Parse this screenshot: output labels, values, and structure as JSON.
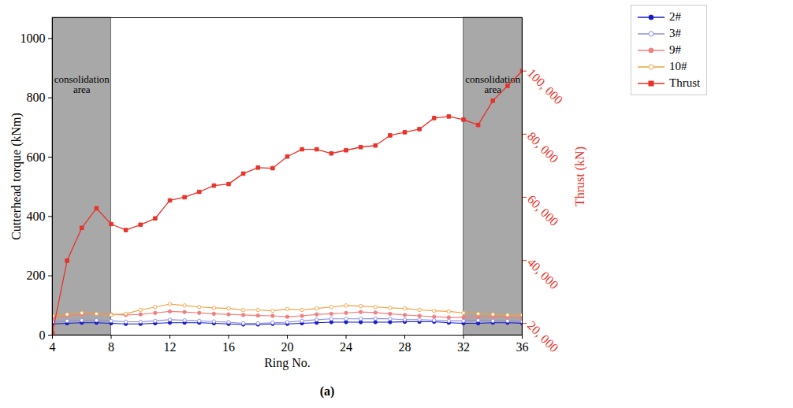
{
  "chart_data": {
    "type": "line",
    "caption": "(a)",
    "xlabel": "Ring No.",
    "ylabel": "Cutterhead torque (kNm)",
    "y2label": "Thrust (kN)",
    "x": [
      4,
      5,
      6,
      7,
      8,
      9,
      10,
      11,
      12,
      13,
      14,
      15,
      16,
      17,
      18,
      19,
      20,
      21,
      22,
      23,
      24,
      25,
      26,
      27,
      28,
      29,
      30,
      31,
      32,
      33,
      34,
      35,
      36
    ],
    "xlim": [
      4,
      36
    ],
    "xticks": [
      4,
      8,
      12,
      16,
      20,
      24,
      28,
      32,
      36
    ],
    "ylim": [
      0,
      1070
    ],
    "yticks": [
      0,
      200,
      400,
      600,
      800,
      1000
    ],
    "y2lim": [
      16300,
      116900
    ],
    "y2ticks": [
      {
        "value": 20000,
        "label": "20, 000"
      },
      {
        "value": 40000,
        "label": "40, 000"
      },
      {
        "value": 60000,
        "label": "60, 000"
      },
      {
        "value": 80000,
        "label": "80, 000"
      },
      {
        "value": 100000,
        "label": "100, 000"
      }
    ],
    "regions": [
      {
        "x": [
          4,
          8
        ],
        "label": "consolidation area",
        "color": "#a8a8a8"
      },
      {
        "x": [
          32,
          36
        ],
        "label": "consolidation area",
        "color": "#a8a8a8"
      }
    ],
    "legend": "top-right",
    "series": [
      {
        "name": "2#",
        "color": "#1a1acc",
        "marker": "circle",
        "values": [
          38,
          40,
          42,
          42,
          40,
          38,
          38,
          40,
          42,
          42,
          42,
          40,
          38,
          36,
          36,
          38,
          38,
          40,
          42,
          44,
          44,
          44,
          44,
          44,
          45,
          45,
          45,
          42,
          40,
          40,
          42,
          42,
          40
        ]
      },
      {
        "name": "3#",
        "color": "#8c8ce6",
        "marker": "open circle",
        "values": [
          45,
          48,
          50,
          50,
          48,
          45,
          45,
          48,
          52,
          50,
          48,
          46,
          44,
          40,
          40,
          42,
          44,
          48,
          52,
          55,
          55,
          55,
          56,
          55,
          52,
          52,
          50,
          48,
          48,
          50,
          48,
          48,
          46
        ]
      },
      {
        "name": "9#",
        "color": "#f08080",
        "marker": "circle",
        "values": [
          60,
          65,
          70,
          72,
          70,
          68,
          70,
          75,
          80,
          78,
          75,
          72,
          70,
          68,
          66,
          65,
          62,
          65,
          70,
          72,
          75,
          78,
          76,
          72,
          68,
          65,
          62,
          60,
          60,
          62,
          62,
          60,
          58
        ]
      },
      {
        "name": "10#",
        "color": "#f0a040",
        "marker": "open circle",
        "values": [
          65,
          70,
          75,
          72,
          68,
          72,
          85,
          95,
          105,
          100,
          95,
          92,
          90,
          85,
          85,
          82,
          88,
          85,
          90,
          95,
          100,
          98,
          95,
          92,
          90,
          85,
          82,
          80,
          75,
          72,
          70,
          68,
          68
        ]
      },
      {
        "name": "Thrust",
        "color": "#e8322a",
        "marker": "square",
        "axis": "y2",
        "values": [
          17000,
          39900,
          50300,
          56500,
          51500,
          49600,
          51300,
          53300,
          59000,
          60000,
          61700,
          63700,
          64200,
          67500,
          69400,
          69200,
          72900,
          75200,
          75200,
          73900,
          74900,
          75900,
          76400,
          79600,
          80600,
          81600,
          85100,
          85600,
          84600,
          82900,
          90600,
          95300,
          100000
        ]
      }
    ]
  }
}
